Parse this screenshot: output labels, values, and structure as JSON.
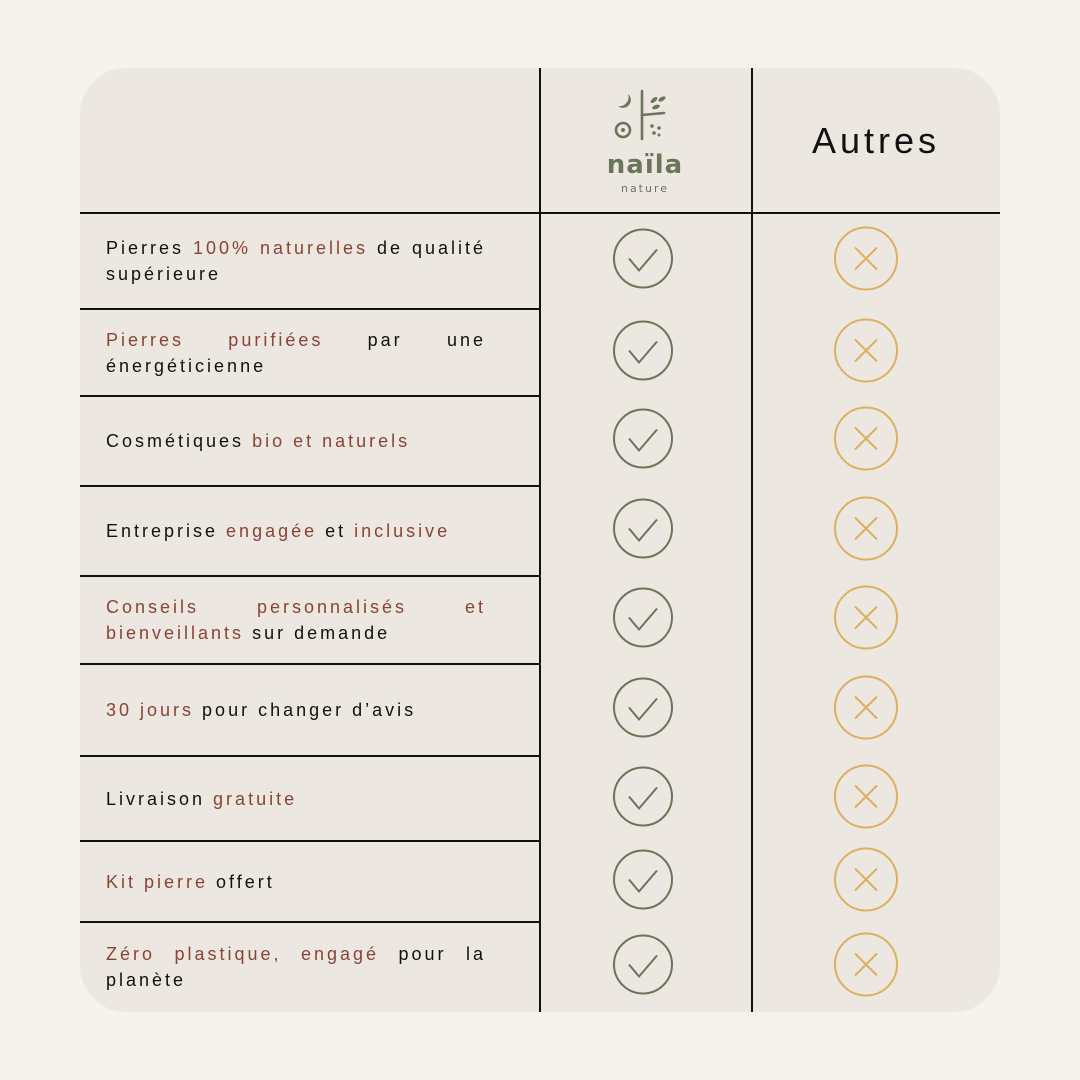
{
  "brand": {
    "name": "naïla",
    "tagline": "nature",
    "color": "#6b7559"
  },
  "header": {
    "others_label": "Autres"
  },
  "colors": {
    "background": "#f6f3ee",
    "card": "#ece7e1",
    "highlight": "#8b4336",
    "check": "#6b7559",
    "cross": "#dcb060"
  },
  "rows": [
    {
      "segments": [
        {
          "text": "Pierres ",
          "hl": false
        },
        {
          "text": "100% naturelles",
          "hl": true
        },
        {
          "text": " de qualité supérieure",
          "hl": false
        }
      ],
      "naila": "check-icon",
      "autres": "cross-icon"
    },
    {
      "segments": [
        {
          "text": "Pierres purifiées",
          "hl": true
        },
        {
          "text": " par une énergéticienne",
          "hl": false
        }
      ],
      "naila": "check-icon",
      "autres": "cross-icon"
    },
    {
      "segments": [
        {
          "text": "Cosmétiques ",
          "hl": false
        },
        {
          "text": "bio et naturels",
          "hl": true
        }
      ],
      "naila": "check-icon",
      "autres": "cross-icon"
    },
    {
      "segments": [
        {
          "text": "Entreprise ",
          "hl": false
        },
        {
          "text": "engagée",
          "hl": true
        },
        {
          "text": " et ",
          "hl": false
        },
        {
          "text": "inclusive",
          "hl": true
        }
      ],
      "naila": "check-icon",
      "autres": "cross-icon"
    },
    {
      "segments": [
        {
          "text": "Conseils personnalisés et bienveillants",
          "hl": true
        },
        {
          "text": " sur demande",
          "hl": false
        }
      ],
      "naila": "check-icon",
      "autres": "cross-icon"
    },
    {
      "segments": [
        {
          "text": "30 jours",
          "hl": true
        },
        {
          "text": " pour changer d’avis",
          "hl": false
        }
      ],
      "naila": "check-icon",
      "autres": "cross-icon"
    },
    {
      "segments": [
        {
          "text": "Livraison ",
          "hl": false
        },
        {
          "text": "gratuite",
          "hl": true
        }
      ],
      "naila": "check-icon",
      "autres": "cross-icon"
    },
    {
      "segments": [
        {
          "text": "Kit pierre",
          "hl": true
        },
        {
          "text": " offert",
          "hl": false
        }
      ],
      "naila": "check-icon",
      "autres": "cross-icon"
    },
    {
      "segments": [
        {
          "text": "Zéro plastique, engagé",
          "hl": true
        },
        {
          "text": " pour la planète",
          "hl": false
        }
      ],
      "naila": "check-icon",
      "autres": "cross-icon"
    }
  ]
}
